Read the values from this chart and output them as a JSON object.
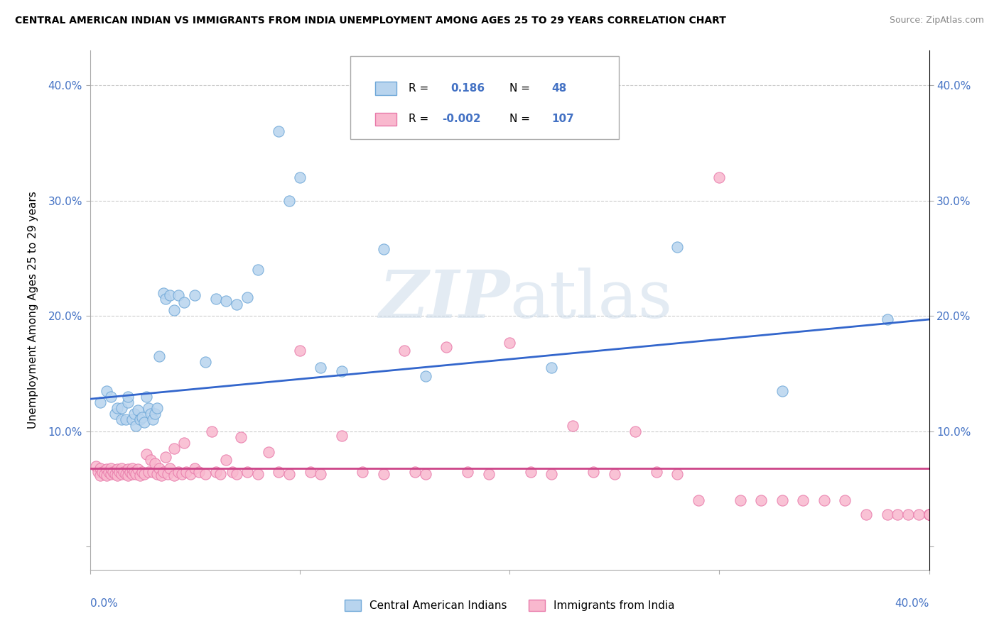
{
  "title": "CENTRAL AMERICAN INDIAN VS IMMIGRANTS FROM INDIA UNEMPLOYMENT AMONG AGES 25 TO 29 YEARS CORRELATION CHART",
  "source": "Source: ZipAtlas.com",
  "ylabel": "Unemployment Among Ages 25 to 29 years",
  "xmin": 0.0,
  "xmax": 0.4,
  "ymin": -0.02,
  "ymax": 0.43,
  "color_blue_fill": "#b8d4ee",
  "color_blue_edge": "#6fa8d8",
  "color_pink_fill": "#f9b8ce",
  "color_pink_edge": "#e87aaa",
  "line_blue": "#3366cc",
  "line_pink": "#cc4488",
  "watermark_color": "#d0dce8",
  "tick_color": "#4472c4",
  "grid_color": "#cccccc",
  "title_color": "#000000",
  "source_color": "#888888",
  "blue_x": [
    0.005,
    0.008,
    0.01,
    0.012,
    0.013,
    0.015,
    0.015,
    0.017,
    0.018,
    0.018,
    0.02,
    0.021,
    0.022,
    0.023,
    0.024,
    0.025,
    0.026,
    0.027,
    0.028,
    0.029,
    0.03,
    0.031,
    0.032,
    0.033,
    0.035,
    0.036,
    0.038,
    0.04,
    0.042,
    0.045,
    0.05,
    0.055,
    0.06,
    0.065,
    0.07,
    0.075,
    0.08,
    0.09,
    0.095,
    0.1,
    0.11,
    0.12,
    0.14,
    0.16,
    0.22,
    0.28,
    0.33,
    0.38
  ],
  "blue_y": [
    0.125,
    0.135,
    0.13,
    0.115,
    0.12,
    0.11,
    0.12,
    0.11,
    0.125,
    0.13,
    0.11,
    0.115,
    0.105,
    0.118,
    0.11,
    0.112,
    0.108,
    0.13,
    0.12,
    0.115,
    0.11,
    0.115,
    0.12,
    0.165,
    0.22,
    0.215,
    0.218,
    0.205,
    0.218,
    0.212,
    0.218,
    0.16,
    0.215,
    0.213,
    0.21,
    0.216,
    0.24,
    0.36,
    0.3,
    0.32,
    0.155,
    0.152,
    0.258,
    0.148,
    0.155,
    0.26,
    0.135,
    0.197
  ],
  "pink_x": [
    0.003,
    0.004,
    0.005,
    0.005,
    0.006,
    0.007,
    0.008,
    0.008,
    0.009,
    0.01,
    0.01,
    0.011,
    0.012,
    0.013,
    0.013,
    0.014,
    0.015,
    0.015,
    0.016,
    0.017,
    0.018,
    0.018,
    0.019,
    0.02,
    0.02,
    0.021,
    0.022,
    0.023,
    0.024,
    0.025,
    0.026,
    0.027,
    0.028,
    0.029,
    0.03,
    0.031,
    0.032,
    0.033,
    0.034,
    0.035,
    0.036,
    0.037,
    0.038,
    0.04,
    0.04,
    0.042,
    0.044,
    0.045,
    0.046,
    0.048,
    0.05,
    0.052,
    0.055,
    0.058,
    0.06,
    0.062,
    0.065,
    0.068,
    0.07,
    0.072,
    0.075,
    0.08,
    0.085,
    0.09,
    0.095,
    0.1,
    0.105,
    0.11,
    0.12,
    0.13,
    0.14,
    0.15,
    0.155,
    0.16,
    0.17,
    0.18,
    0.19,
    0.2,
    0.21,
    0.22,
    0.23,
    0.24,
    0.25,
    0.26,
    0.27,
    0.28,
    0.29,
    0.3,
    0.31,
    0.32,
    0.33,
    0.34,
    0.35,
    0.36,
    0.37,
    0.38,
    0.385,
    0.39,
    0.395,
    0.4,
    0.4,
    0.4,
    0.4,
    0.4,
    0.4,
    0.4,
    0.4
  ],
  "pink_y": [
    0.07,
    0.065,
    0.068,
    0.062,
    0.065,
    0.063,
    0.067,
    0.062,
    0.065,
    0.063,
    0.068,
    0.065,
    0.063,
    0.067,
    0.062,
    0.065,
    0.063,
    0.068,
    0.065,
    0.063,
    0.067,
    0.062,
    0.065,
    0.063,
    0.068,
    0.065,
    0.063,
    0.067,
    0.062,
    0.065,
    0.063,
    0.08,
    0.065,
    0.075,
    0.065,
    0.072,
    0.063,
    0.068,
    0.062,
    0.065,
    0.078,
    0.063,
    0.068,
    0.062,
    0.085,
    0.065,
    0.063,
    0.09,
    0.065,
    0.063,
    0.068,
    0.065,
    0.063,
    0.1,
    0.065,
    0.063,
    0.075,
    0.065,
    0.063,
    0.095,
    0.065,
    0.063,
    0.082,
    0.065,
    0.063,
    0.17,
    0.065,
    0.063,
    0.096,
    0.065,
    0.063,
    0.17,
    0.065,
    0.063,
    0.173,
    0.065,
    0.063,
    0.177,
    0.065,
    0.063,
    0.105,
    0.065,
    0.063,
    0.1,
    0.065,
    0.063,
    0.04,
    0.32,
    0.04,
    0.04,
    0.04,
    0.04,
    0.04,
    0.04,
    0.028,
    0.028,
    0.028,
    0.028,
    0.028,
    0.028,
    0.028,
    0.028,
    0.028,
    0.028,
    0.028,
    0.028,
    0.028
  ],
  "blue_line_x": [
    0.0,
    0.4
  ],
  "blue_line_y": [
    0.128,
    0.197
  ],
  "pink_line_x": [
    0.0,
    0.4
  ],
  "pink_line_y": [
    0.068,
    0.068
  ]
}
